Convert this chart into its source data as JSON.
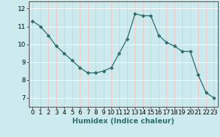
{
  "x": [
    0,
    1,
    2,
    3,
    4,
    5,
    6,
    7,
    8,
    9,
    10,
    11,
    12,
    13,
    14,
    15,
    16,
    17,
    18,
    19,
    20,
    21,
    22,
    23
  ],
  "y": [
    11.3,
    11.0,
    10.5,
    9.9,
    9.5,
    9.1,
    8.7,
    8.4,
    8.4,
    8.5,
    8.7,
    9.5,
    10.3,
    11.7,
    11.6,
    11.6,
    10.5,
    10.1,
    9.9,
    9.6,
    9.6,
    8.3,
    7.3,
    7.0
  ],
  "line_color": "#2d6e6e",
  "marker": "D",
  "markersize": 2.5,
  "linewidth": 1.0,
  "bg_color": "#cce9ed",
  "grid_color": "#ffffff",
  "xlabel": "Humidex (Indice chaleur)",
  "xlabel_fontsize": 7.5,
  "xtick_labels": [
    "0",
    "1",
    "2",
    "3",
    "4",
    "5",
    "6",
    "7",
    "8",
    "9",
    "10",
    "11",
    "12",
    "13",
    "14",
    "15",
    "16",
    "17",
    "18",
    "19",
    "20",
    "21",
    "22",
    "23"
  ],
  "ytick_labels": [
    "7",
    "8",
    "9",
    "10",
    "11",
    "12"
  ],
  "ylim": [
    6.5,
    12.4
  ],
  "xlim": [
    -0.5,
    23.5
  ],
  "tick_fontsize": 6.5,
  "axis_color": "#555555"
}
